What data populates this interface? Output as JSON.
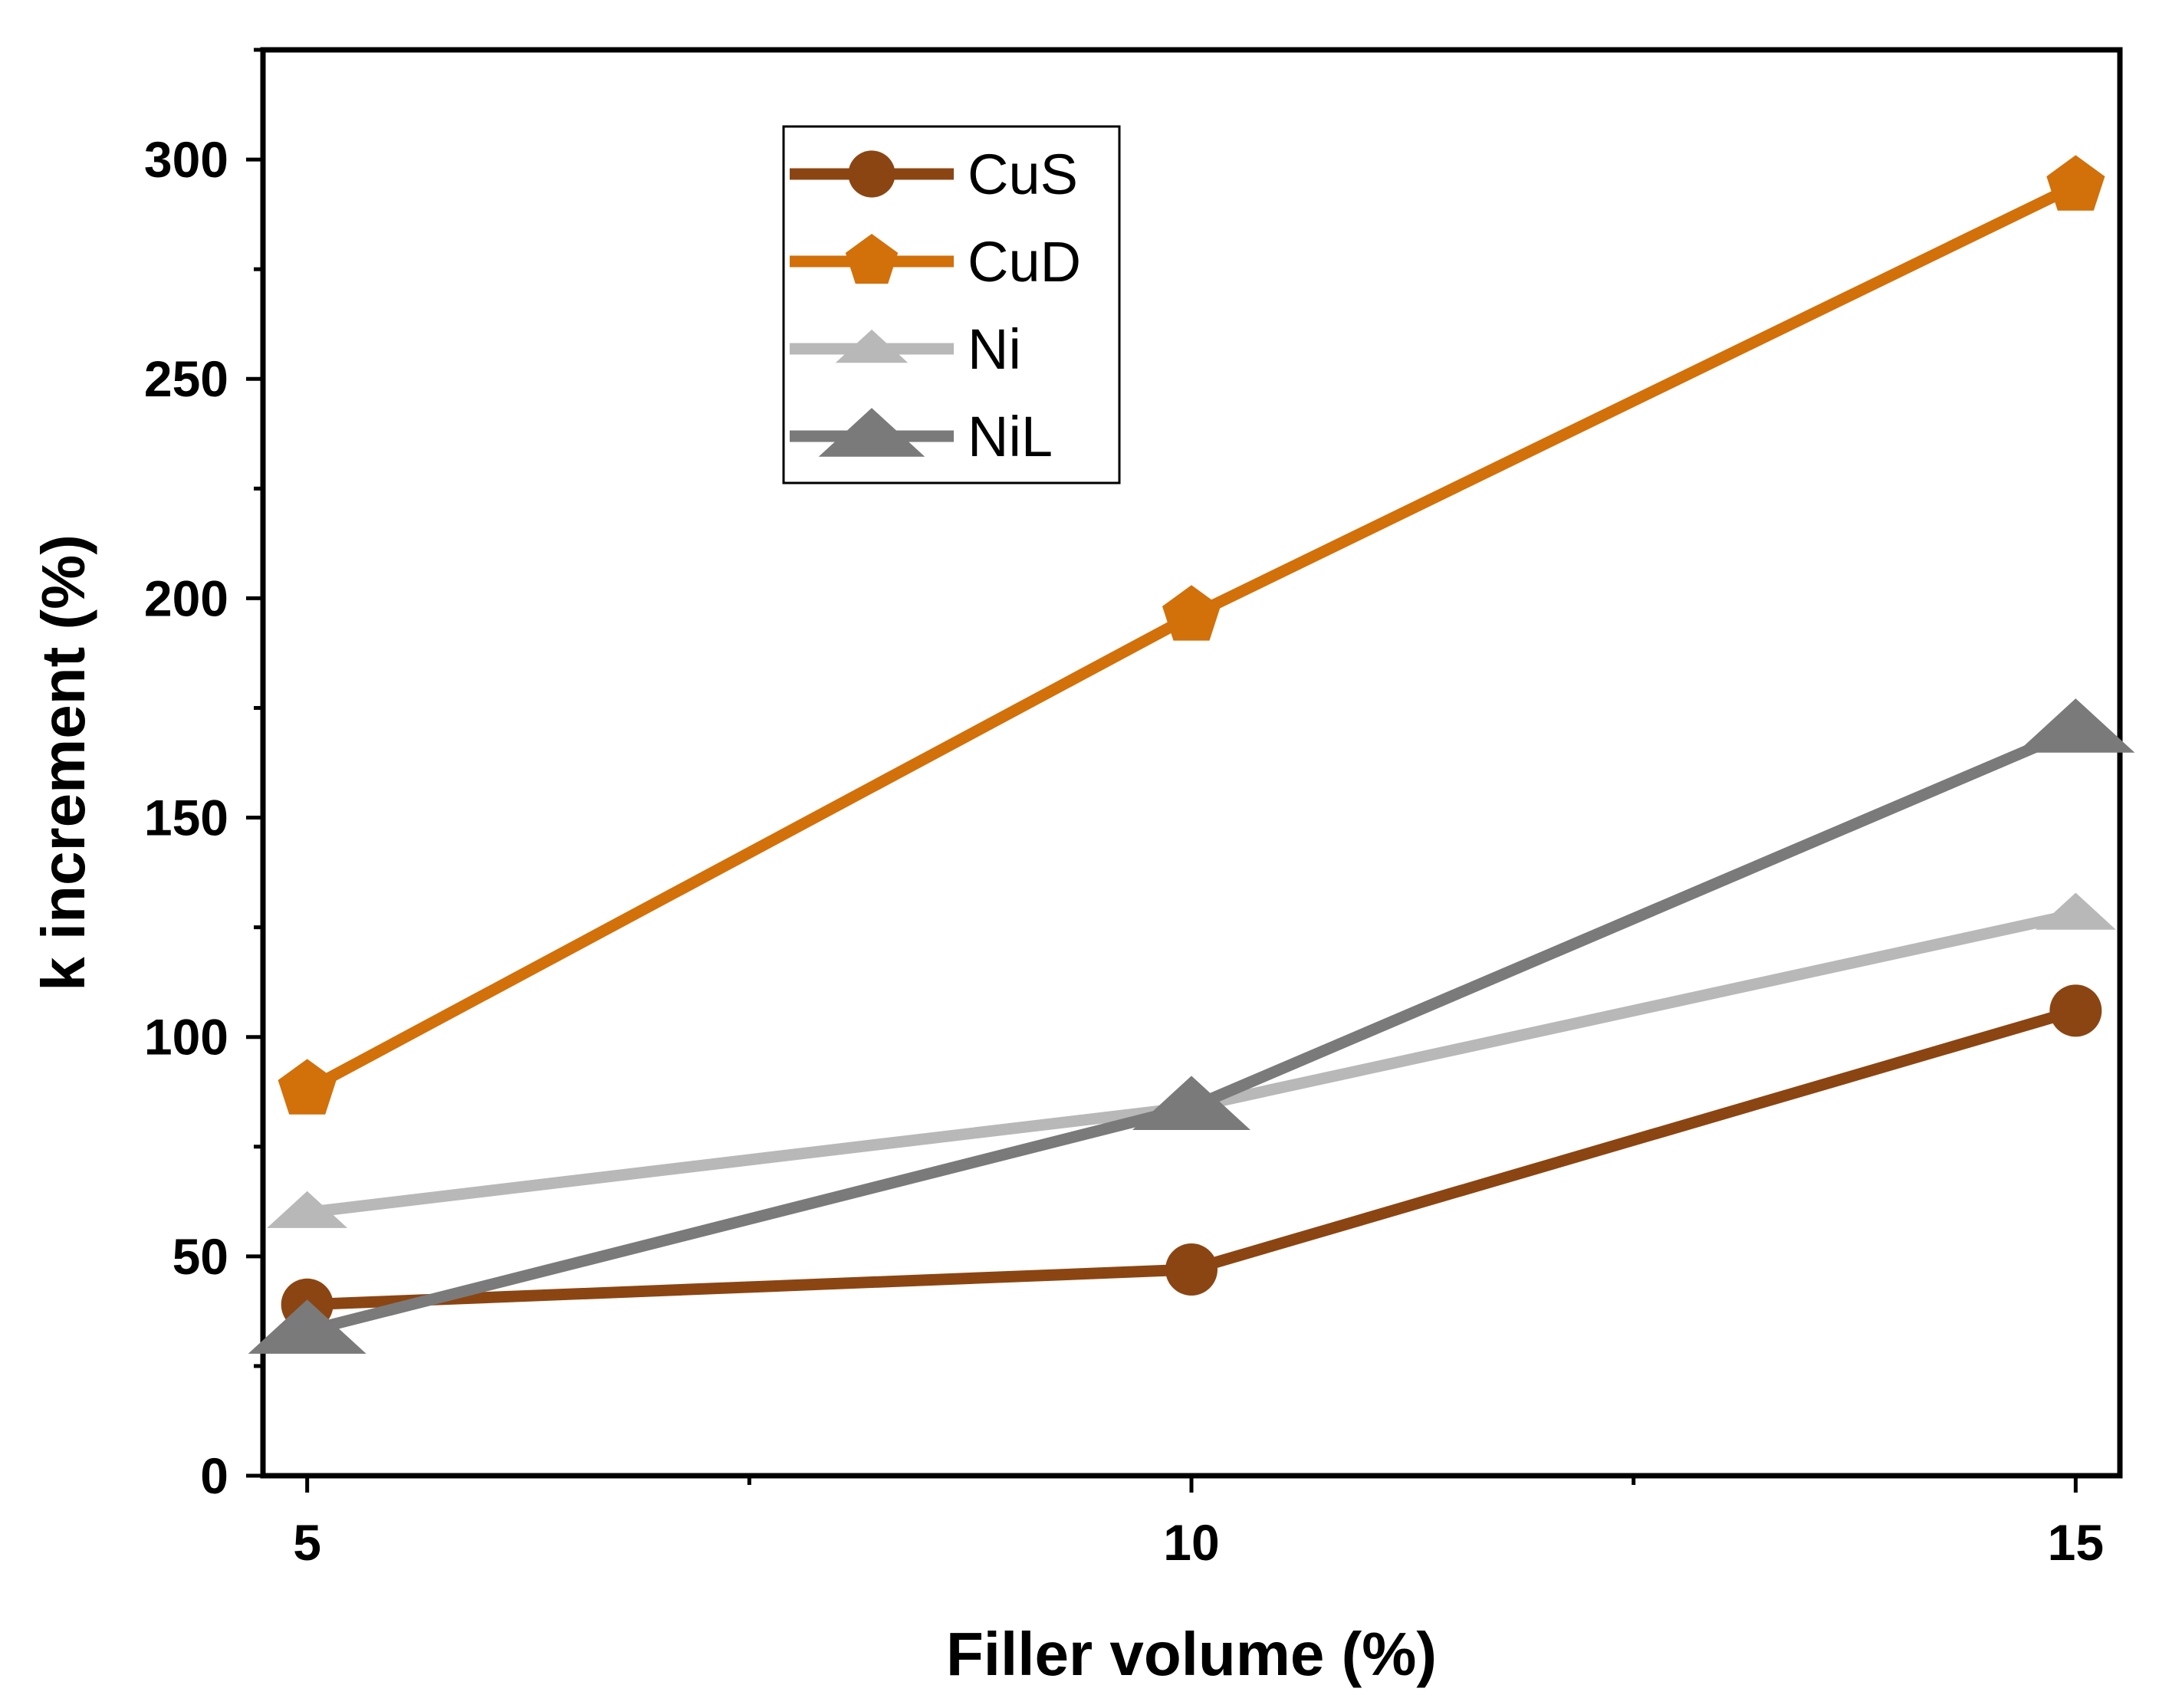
{
  "chart_data": {
    "type": "line",
    "title": "",
    "xlabel": "Filler volume (%)",
    "ylabel": "k increment (%)",
    "x": [
      5,
      10,
      15
    ],
    "xlim": [
      4.75,
      15.25
    ],
    "ylim": [
      0,
      325
    ],
    "xticks": [
      "5",
      "10",
      "15"
    ],
    "xticks_values": [
      5,
      10,
      15
    ],
    "yticks": [
      "0",
      "50",
      "100",
      "150",
      "200",
      "250",
      "300"
    ],
    "yticks_values": [
      0,
      50,
      100,
      150,
      200,
      250,
      300
    ],
    "grid": false,
    "legend_position": "top-left",
    "series": [
      {
        "name": "CuS",
        "values": [
          39,
          47,
          106
        ],
        "color": "#8B4513",
        "marker": "circle"
      },
      {
        "name": "CuD",
        "values": [
          88,
          196,
          294
        ],
        "color": "#D2700A",
        "marker": "pentagon"
      },
      {
        "name": "Ni",
        "values": [
          60,
          84,
          128
        ],
        "color": "#B8B8B8",
        "marker": "triangle"
      },
      {
        "name": "NiL",
        "values": [
          33,
          84,
          170
        ],
        "color": "#7A7A7A",
        "marker": "triangle"
      }
    ]
  }
}
